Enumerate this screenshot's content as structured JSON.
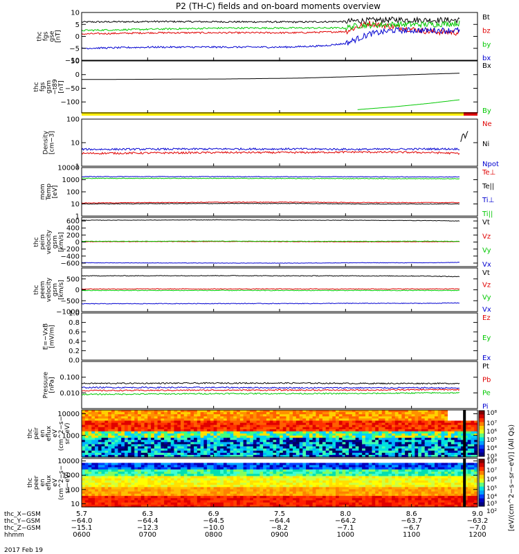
{
  "title": "P2 (TH-C) fields and on-board moments overview",
  "colors": {
    "black": "#000000",
    "red": "#e00000",
    "green": "#00c800",
    "blue": "#0000d0",
    "yellow": "#ffee00"
  },
  "chart_data": [
    {
      "type": "line",
      "id": "fgs",
      "ylabel": [
        "thc",
        "fgs",
        "gse",
        "[nT]"
      ],
      "ylim": [
        -10,
        10
      ],
      "ticks": [
        "10",
        "5",
        "0",
        "−5",
        "−10"
      ],
      "tick_values": [
        10,
        5,
        0,
        -5,
        -10
      ],
      "series": [
        {
          "name": "Bt",
          "color": "#000000",
          "points": [
            [
              5.7,
              6
            ],
            [
              6.3,
              6.2
            ],
            [
              6.9,
              6.1
            ],
            [
              7.5,
              6
            ],
            [
              7.9,
              6.2
            ],
            [
              8.0,
              6.5
            ],
            [
              8.3,
              7
            ],
            [
              8.6,
              6.8
            ],
            [
              8.85,
              6.8
            ]
          ]
        },
        {
          "name": "bz",
          "color": "#e00000",
          "points": [
            [
              5.7,
              1
            ],
            [
              6.3,
              1.5
            ],
            [
              6.9,
              1.5
            ],
            [
              7.5,
              1.5
            ],
            [
              7.9,
              2
            ],
            [
              8.0,
              4
            ],
            [
              8.1,
              5.5
            ],
            [
              8.3,
              4
            ],
            [
              8.6,
              2
            ],
            [
              8.85,
              1.5
            ]
          ]
        },
        {
          "name": "by",
          "color": "#00c800",
          "points": [
            [
              5.7,
              2.5
            ],
            [
              6.3,
              3
            ],
            [
              6.9,
              3.5
            ],
            [
              7.5,
              3.5
            ],
            [
              7.9,
              3.5
            ],
            [
              8.0,
              4.5
            ],
            [
              8.3,
              5
            ],
            [
              8.6,
              5
            ],
            [
              8.85,
              5.5
            ]
          ]
        },
        {
          "name": "bx",
          "color": "#0000d0",
          "points": [
            [
              5.7,
              -5
            ],
            [
              6.3,
              -4.5
            ],
            [
              6.9,
              -4.5
            ],
            [
              7.4,
              -4.5
            ],
            [
              7.7,
              -4
            ],
            [
              7.9,
              -3
            ],
            [
              8.0,
              -1
            ],
            [
              8.1,
              1
            ],
            [
              8.3,
              2.5
            ],
            [
              8.6,
              2.5
            ],
            [
              8.85,
              2.5
            ]
          ]
        }
      ]
    },
    {
      "type": "line",
      "id": "t89",
      "ylabel": [
        "thc",
        "fgs",
        "gsm",
        "−t89",
        "[nT]"
      ],
      "ylim": [
        -140,
        50
      ],
      "ticks": [
        "50",
        "0",
        "−50",
        "−100"
      ],
      "tick_values": [
        50,
        0,
        -50,
        -100
      ],
      "series": [
        {
          "name": "Bx",
          "color": "#000000",
          "points": [
            [
              5.7,
              -18
            ],
            [
              6.3,
              -17
            ],
            [
              6.9,
              -16
            ],
            [
              7.5,
              -13
            ],
            [
              8.0,
              -7
            ],
            [
              8.6,
              2
            ],
            [
              8.85,
              5
            ]
          ]
        },
        {
          "name": "By",
          "color": "#00c800",
          "points": [
            [
              8.0,
              -128
            ],
            [
              8.3,
              -118
            ],
            [
              8.6,
              -105
            ],
            [
              8.85,
              -92
            ]
          ]
        }
      ]
    },
    {
      "type": "line",
      "id": "density",
      "scale": "log",
      "ylabel": [
        "Density",
        "[cm−3]"
      ],
      "ylim": [
        1,
        100
      ],
      "ticks": [
        "100",
        "10",
        "1"
      ],
      "tick_values": [
        100,
        10,
        1
      ],
      "series": [
        {
          "name": "Ne",
          "color": "#e00000",
          "points": [
            [
              5.7,
              3.5
            ],
            [
              6.9,
              3.8
            ],
            [
              7.5,
              3.8
            ],
            [
              8.0,
              4
            ],
            [
              8.6,
              3.8
            ],
            [
              8.85,
              3.5
            ]
          ]
        },
        {
          "name": "Ni",
          "color": "#000000",
          "points": [
            [
              8.86,
              10
            ],
            [
              8.88,
              25
            ],
            [
              8.9,
              15
            ],
            [
              8.92,
              30
            ]
          ]
        },
        {
          "name": "Npot",
          "color": "#0000d0",
          "points": [
            [
              5.7,
              5.2
            ],
            [
              6.9,
              5.4
            ],
            [
              7.5,
              5.4
            ],
            [
              8.0,
              5.2
            ],
            [
              8.6,
              5.4
            ],
            [
              8.85,
              5.4
            ]
          ]
        }
      ]
    },
    {
      "type": "line",
      "id": "temp",
      "scale": "log",
      "ylabel": [
        "mom",
        "Temp",
        "[eV]"
      ],
      "ylim": [
        1,
        10000
      ],
      "ticks": [
        "10000",
        "1000",
        "100",
        "10",
        "1"
      ],
      "tick_values": [
        10000,
        1000,
        100,
        10,
        1
      ],
      "series": [
        {
          "name": "Te⊥",
          "color": "#e00000",
          "points": [
            [
              5.7,
              12
            ],
            [
              6.9,
              14
            ],
            [
              7.5,
              14
            ],
            [
              8.0,
              13
            ],
            [
              8.6,
              13
            ],
            [
              8.85,
              13
            ]
          ]
        },
        {
          "name": "Te||",
          "color": "#000000",
          "points": [
            [
              5.7,
              10
            ],
            [
              6.9,
              11
            ],
            [
              7.5,
              11
            ],
            [
              8.0,
              10
            ],
            [
              8.6,
              10
            ],
            [
              8.85,
              10
            ]
          ]
        },
        {
          "name": "Ti⊥",
          "color": "#0000d0",
          "points": [
            [
              5.7,
              1800
            ],
            [
              6.9,
              1800
            ],
            [
              7.5,
              1750
            ],
            [
              8.0,
              1750
            ],
            [
              8.6,
              1700
            ],
            [
              8.85,
              1700
            ]
          ]
        },
        {
          "name": "Ti||",
          "color": "#00c800",
          "points": [
            [
              5.7,
              1300
            ],
            [
              6.9,
              1300
            ],
            [
              7.5,
              1250
            ],
            [
              8.0,
              1250
            ],
            [
              8.6,
              1200
            ],
            [
              8.85,
              1200
            ]
          ]
        }
      ]
    },
    {
      "type": "line",
      "id": "peim",
      "ylabel": [
        "thc",
        "peim",
        "velocity",
        "gsm",
        "[km/s]"
      ],
      "ylim": [
        -700,
        700
      ],
      "ticks": [
        "600",
        "400",
        "200",
        "0",
        "−200",
        "−400",
        "−600"
      ],
      "tick_values": [
        600,
        400,
        200,
        0,
        -200,
        -400,
        -600
      ],
      "series": [
        {
          "name": "Vt",
          "color": "#000000",
          "points": [
            [
              5.7,
              620
            ],
            [
              6.9,
              630
            ],
            [
              7.5,
              620
            ],
            [
              8.0,
              620
            ],
            [
              8.6,
              610
            ],
            [
              8.85,
              600
            ]
          ]
        },
        {
          "name": "Vz",
          "color": "#e00000",
          "points": [
            [
              5.7,
              10
            ],
            [
              6.9,
              15
            ],
            [
              7.5,
              10
            ],
            [
              8.0,
              5
            ],
            [
              8.6,
              10
            ],
            [
              8.85,
              10
            ]
          ]
        },
        {
          "name": "Vy",
          "color": "#00c800",
          "points": [
            [
              5.7,
              20
            ],
            [
              6.9,
              25
            ],
            [
              7.5,
              20
            ],
            [
              8.0,
              20
            ],
            [
              8.6,
              25
            ],
            [
              8.85,
              20
            ]
          ]
        },
        {
          "name": "Vx",
          "color": "#0000d0",
          "points": [
            [
              5.7,
              -590
            ],
            [
              6.9,
              -600
            ],
            [
              7.5,
              -600
            ],
            [
              8.0,
              -590
            ],
            [
              8.6,
              -590
            ],
            [
              8.85,
              -580
            ]
          ]
        }
      ]
    },
    {
      "type": "line",
      "id": "peem",
      "ylabel": [
        "thc",
        "peem",
        "velocity",
        "gsm",
        "[km/s]"
      ],
      "ylim": [
        -1000,
        1000
      ],
      "ticks": [
        "500",
        "0",
        "−500",
        "−1000"
      ],
      "tick_values": [
        500,
        0,
        -500,
        -1000
      ],
      "series": [
        {
          "name": "Vt",
          "color": "#000000",
          "points": [
            [
              5.7,
              640
            ],
            [
              6.9,
              650
            ],
            [
              7.5,
              640
            ],
            [
              8.0,
              640
            ],
            [
              8.6,
              630
            ],
            [
              8.85,
              600
            ]
          ]
        },
        {
          "name": "Vz",
          "color": "#e00000",
          "points": [
            [
              5.7,
              40
            ],
            [
              6.9,
              40
            ],
            [
              7.5,
              40
            ],
            [
              8.0,
              40
            ],
            [
              8.6,
              40
            ],
            [
              8.85,
              40
            ]
          ]
        },
        {
          "name": "Vy",
          "color": "#00c800",
          "points": [
            [
              5.7,
              -30
            ],
            [
              6.9,
              -30
            ],
            [
              7.5,
              -30
            ],
            [
              8.0,
              -30
            ],
            [
              8.6,
              -30
            ],
            [
              8.85,
              -30
            ]
          ]
        },
        {
          "name": "Vx",
          "color": "#0000d0",
          "points": [
            [
              5.7,
              -640
            ],
            [
              6.9,
              -630
            ],
            [
              7.5,
              -630
            ],
            [
              8.0,
              -620
            ],
            [
              8.6,
              -620
            ],
            [
              8.85,
              -600
            ]
          ]
        }
      ]
    },
    {
      "type": "line",
      "id": "efield",
      "ylabel": [
        "E=−VxB",
        "[mV/m]"
      ],
      "ylim": [
        0,
        1
      ],
      "ticks": [
        "1.0",
        "0.8",
        "0.6",
        "0.4",
        "0.2",
        "0.0"
      ],
      "tick_values": [
        1.0,
        0.8,
        0.6,
        0.4,
        0.2,
        0.0
      ],
      "series": [
        {
          "name": "Ez",
          "color": "#e00000",
          "points": []
        },
        {
          "name": "Ey",
          "color": "#00c800",
          "points": []
        },
        {
          "name": "Ex",
          "color": "#0000d0",
          "points": []
        }
      ]
    },
    {
      "type": "line",
      "id": "pressure",
      "scale": "log",
      "ylabel": [
        "Pressure",
        "[nPa]"
      ],
      "ylim": [
        0.001,
        1
      ],
      "ticks": [
        "0.100",
        "0.010"
      ],
      "tick_values": [
        0.1,
        0.01
      ],
      "series": [
        {
          "name": "Pt",
          "color": "#000000",
          "points": [
            [
              5.7,
              0.04
            ],
            [
              6.9,
              0.042
            ],
            [
              7.5,
              0.042
            ],
            [
              8.0,
              0.04
            ],
            [
              8.6,
              0.04
            ],
            [
              8.85,
              0.04
            ]
          ]
        },
        {
          "name": "Pb",
          "color": "#e00000",
          "points": [
            [
              5.7,
              0.014
            ],
            [
              6.9,
              0.015
            ],
            [
              7.5,
              0.015
            ],
            [
              8.0,
              0.015
            ],
            [
              8.6,
              0.016
            ],
            [
              8.85,
              0.016
            ]
          ]
        },
        {
          "name": "Pe",
          "color": "#00c800",
          "points": [
            [
              5.7,
              0.008
            ],
            [
              6.9,
              0.009
            ],
            [
              7.5,
              0.009
            ],
            [
              8.0,
              0.009
            ],
            [
              8.6,
              0.01
            ],
            [
              8.85,
              0.01
            ]
          ]
        },
        {
          "name": "Pi",
          "color": "#0000d0",
          "points": [
            [
              5.7,
              0.022
            ],
            [
              6.9,
              0.022
            ],
            [
              7.5,
              0.021
            ],
            [
              8.0,
              0.021
            ],
            [
              8.6,
              0.021
            ],
            [
              8.85,
              0.02
            ]
          ]
        }
      ]
    },
    {
      "type": "heatmap",
      "id": "peir",
      "ylabel": [
        "thc",
        "peir",
        "en",
        "eflux",
        "eV",
        "(cm^2−s−",
        "sr−eV)"
      ],
      "ylim": [
        100,
        15000
      ],
      "scale": "log",
      "ticks": [
        "10000",
        "1000"
      ],
      "tick_values": [
        10000,
        1000
      ]
    },
    {
      "type": "heatmap",
      "id": "peer",
      "ylabel": [
        "thc",
        "peer",
        "en",
        "eflux",
        "eV",
        "(cm^2−s−",
        "sr−eV)"
      ],
      "ylim": [
        6,
        15000
      ],
      "scale": "log",
      "ticks": [
        "10000",
        "1000",
        "100",
        "10"
      ],
      "tick_values": [
        10000,
        1000,
        100,
        10
      ]
    }
  ],
  "legends": [
    [
      "Bt",
      "bz",
      "by",
      "bx"
    ],
    [
      "Bx",
      "By"
    ],
    [
      "Ne",
      "Ni",
      "Npot"
    ],
    [
      "Te⊥",
      "Te||",
      "Ti⊥",
      "Ti||"
    ],
    [
      "Vt",
      "Vz",
      "Vy",
      "Vx"
    ],
    [
      "Vt",
      "Vz",
      "Vy",
      "Vx"
    ],
    [
      "Ez",
      "Ey",
      "Ex"
    ],
    [
      "Pt",
      "Pb",
      "Pe",
      "Pi"
    ]
  ],
  "colorbar": {
    "label": "[eV/(cm^2−s−sr−eV)] (All Qs)",
    "ticks": [
      "10⁸",
      "10⁷",
      "10⁶",
      "10⁵",
      "10⁴",
      "10³",
      "10⁸",
      "10⁷",
      "10⁶",
      "10⁵",
      "10⁴",
      "10³",
      "10²"
    ]
  },
  "xaxis": {
    "xlim": [
      5.7,
      9.0
    ],
    "row_labels": [
      "thc_X−GSM",
      "thc_Y−GSM",
      "thc_Z−GSM",
      "hhmm"
    ],
    "date": "2017 Feb 19",
    "columns": [
      {
        "x": 5.7,
        "vals": [
          "5.7",
          "−64.0",
          "−15.1",
          "0600"
        ]
      },
      {
        "x": 6.25,
        "vals": [
          "6.3",
          "−64.4",
          "−12.3",
          "0700"
        ]
      },
      {
        "x": 6.8,
        "vals": [
          "6.9",
          "−64.5",
          "−10.0",
          "0800"
        ]
      },
      {
        "x": 7.35,
        "vals": [
          "7.5",
          "−64.4",
          "−8.2",
          "0900"
        ]
      },
      {
        "x": 7.9,
        "vals": [
          "8.0",
          "−64.2",
          "−7.1",
          "1000"
        ]
      },
      {
        "x": 8.45,
        "vals": [
          "8.6",
          "−63.7",
          "−6.7",
          "1100"
        ]
      },
      {
        "x": 9.0,
        "vals": [
          "9.0",
          "−63.2",
          "−7.0",
          "1200"
        ]
      }
    ]
  }
}
